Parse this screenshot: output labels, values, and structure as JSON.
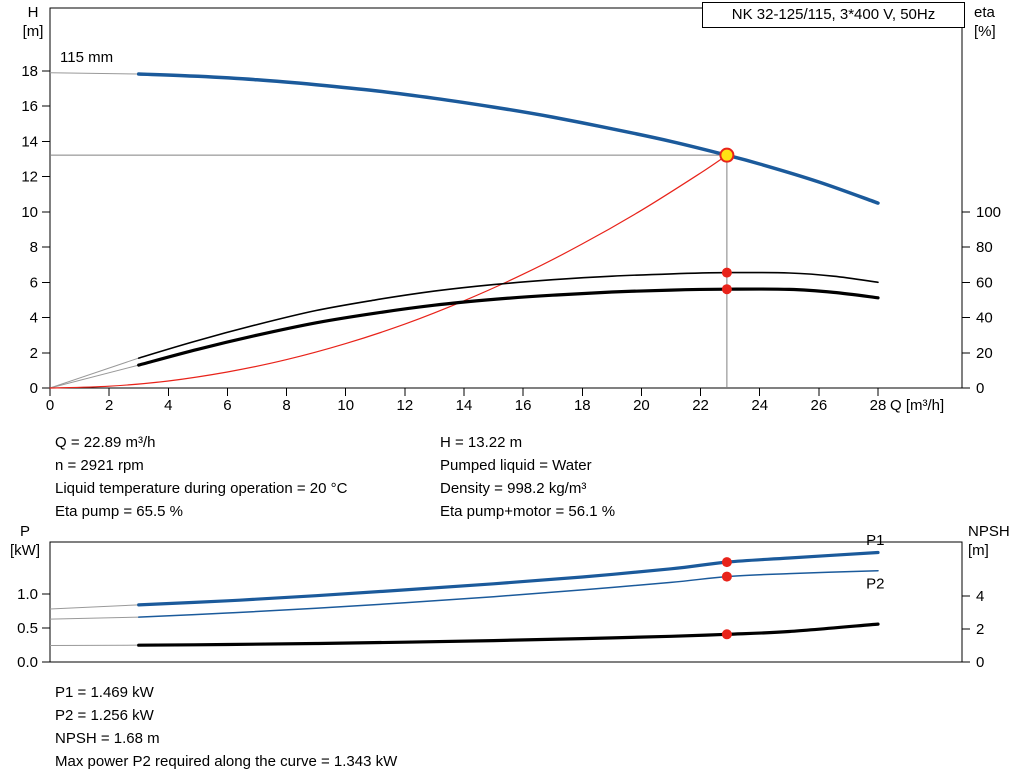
{
  "colors": {
    "curve_blue": "#1b5a9b",
    "red": "#e8231a",
    "duty_yellow": "#ffe014",
    "marker_gray": "#808080",
    "lead_gray": "#999999",
    "black": "#000000"
  },
  "results_top_left": [
    "Q = 22.89 m³/h",
    "n = 2921 rpm",
    "Liquid temperature during operation = 20 °C",
    "Eta pump = 65.5 %"
  ],
  "results_top_right": [
    "H = 13.22 m",
    "Pumped liquid = Water",
    "Density = 998.2 kg/m³",
    "Eta pump+motor = 56.1 %"
  ],
  "results_bottom": [
    "P1 = 1.469 kW",
    "P2 = 1.256 kW",
    "NPSH = 1.68 m",
    "Max power P2 required along the curve = 1.343 kW"
  ],
  "chart_data": [
    {
      "name": "head-efficiency-chart",
      "type": "line",
      "title": "NK 32-125/115, 3*400 V, 50Hz",
      "x": {
        "label": "Q [m³/h]",
        "min": 0,
        "max": 28,
        "ticks": [
          0,
          2,
          4,
          6,
          8,
          10,
          12,
          14,
          16,
          18,
          20,
          22,
          24,
          26,
          28
        ]
      },
      "y_left": {
        "name": "H",
        "unit": "[m]",
        "min": 0,
        "max": 18,
        "ticks": [
          0,
          2,
          4,
          6,
          8,
          10,
          12,
          14,
          16,
          18
        ]
      },
      "y_right": {
        "name": "eta",
        "unit": "[%]",
        "min": 0,
        "max": 100,
        "ticks": [
          0,
          20,
          40,
          60,
          80,
          100
        ]
      },
      "grid": false,
      "operating_point": {
        "q": 22.89,
        "h": 13.22,
        "eta_pump": 65.5,
        "eta_pump_motor": 56.1
      },
      "series": [
        {
          "name": "head-curve",
          "label": "115 mm",
          "axis": "left",
          "color": "#1b5a9b",
          "width": 3.5,
          "lead_in": [
            0,
            17.9
          ],
          "points": [
            [
              3,
              17.83
            ],
            [
              5,
              17.7
            ],
            [
              7,
              17.5
            ],
            [
              9,
              17.22
            ],
            [
              11,
              16.88
            ],
            [
              13,
              16.45
            ],
            [
              15,
              15.95
            ],
            [
              17,
              15.38
            ],
            [
              19,
              14.72
            ],
            [
              21,
              14.0
            ],
            [
              22.89,
              13.22
            ],
            [
              24,
              12.72
            ],
            [
              26,
              11.7
            ],
            [
              28,
              10.5
            ]
          ]
        },
        {
          "name": "system-curve",
          "axis": "left",
          "color": "#e8231a",
          "width": 1.2,
          "points": [
            [
              0,
              0
            ],
            [
              2,
              0.1
            ],
            [
              4,
              0.4
            ],
            [
              6,
              0.91
            ],
            [
              8,
              1.61
            ],
            [
              10,
              2.52
            ],
            [
              12,
              3.63
            ],
            [
              14,
              4.95
            ],
            [
              16,
              6.46
            ],
            [
              18,
              8.18
            ],
            [
              20,
              10.09
            ],
            [
              22,
              12.21
            ],
            [
              22.89,
              13.22
            ]
          ]
        },
        {
          "name": "eta-pump-curve",
          "axis": "right",
          "color": "#000000",
          "width": 1.6,
          "lead_in": [
            0,
            0
          ],
          "points": [
            [
              3,
              17
            ],
            [
              5,
              27
            ],
            [
              7,
              36
            ],
            [
              9,
              44
            ],
            [
              11,
              50
            ],
            [
              13,
              55
            ],
            [
              15,
              58.7
            ],
            [
              17,
              61.5
            ],
            [
              19,
              63.5
            ],
            [
              21,
              64.8
            ],
            [
              22.89,
              65.5
            ],
            [
              25,
              65.3
            ],
            [
              26.5,
              63.5
            ],
            [
              28,
              60
            ]
          ]
        },
        {
          "name": "eta-pump-motor-curve",
          "axis": "right",
          "color": "#000000",
          "width": 3.2,
          "lead_in": [
            0,
            0
          ],
          "points": [
            [
              3,
              13
            ],
            [
              5,
              22
            ],
            [
              7,
              30
            ],
            [
              9,
              37
            ],
            [
              11,
              42.5
            ],
            [
              13,
              47
            ],
            [
              15,
              50.3
            ],
            [
              17,
              52.7
            ],
            [
              19,
              54.5
            ],
            [
              21,
              55.6
            ],
            [
              22.89,
              56.1
            ],
            [
              25,
              56
            ],
            [
              26.5,
              54.3
            ],
            [
              28,
              51.2
            ]
          ]
        }
      ]
    },
    {
      "name": "power-npsh-chart",
      "type": "line",
      "x": {
        "min": 0,
        "max": 28,
        "ticks": []
      },
      "y_left": {
        "name": "P",
        "unit": "[kW]",
        "tick_values": [
          0,
          0.5,
          1
        ],
        "tick_labels": [
          "0.0",
          "0.5",
          "1.0"
        ]
      },
      "y_right": {
        "name": "NPSH",
        "unit": "[m]",
        "ticks": [
          0,
          2,
          4
        ]
      },
      "grid": false,
      "operating_point": {
        "q": 22.89,
        "p1_kw": 1.469,
        "p2_kw": 1.256,
        "npsh_m": 1.68
      },
      "series": [
        {
          "name": "p1-curve",
          "label": "P1",
          "label_at": [
            27.6,
            1.72
          ],
          "axis": "left",
          "color": "#1b5a9b",
          "width": 3.2,
          "lead_in": [
            0,
            0.78
          ],
          "points": [
            [
              3,
              0.84
            ],
            [
              6,
              0.9
            ],
            [
              9,
              0.975
            ],
            [
              12,
              1.06
            ],
            [
              15,
              1.15
            ],
            [
              18,
              1.25
            ],
            [
              21,
              1.37
            ],
            [
              22.89,
              1.469
            ],
            [
              25,
              1.53
            ],
            [
              28,
              1.61
            ]
          ]
        },
        {
          "name": "p2-curve",
          "label": "P2",
          "label_at": [
            27.6,
            1.08
          ],
          "axis": "left",
          "color": "#1b5a9b",
          "width": 1.5,
          "lead_in": [
            0,
            0.63
          ],
          "points": [
            [
              3,
              0.66
            ],
            [
              6,
              0.72
            ],
            [
              9,
              0.79
            ],
            [
              12,
              0.87
            ],
            [
              15,
              0.96
            ],
            [
              18,
              1.06
            ],
            [
              21,
              1.17
            ],
            [
              22.89,
              1.256
            ],
            [
              25,
              1.3
            ],
            [
              28,
              1.343
            ]
          ]
        },
        {
          "name": "npsh-curve",
          "axis": "right",
          "color": "#000000",
          "width": 3.2,
          "lead_in": [
            0,
            1.0
          ],
          "points": [
            [
              3,
              1.02
            ],
            [
              6,
              1.06
            ],
            [
              9,
              1.12
            ],
            [
              12,
              1.2
            ],
            [
              15,
              1.3
            ],
            [
              18,
              1.42
            ],
            [
              21,
              1.56
            ],
            [
              22.89,
              1.68
            ],
            [
              25,
              1.85
            ],
            [
              28,
              2.3
            ]
          ]
        }
      ]
    }
  ]
}
